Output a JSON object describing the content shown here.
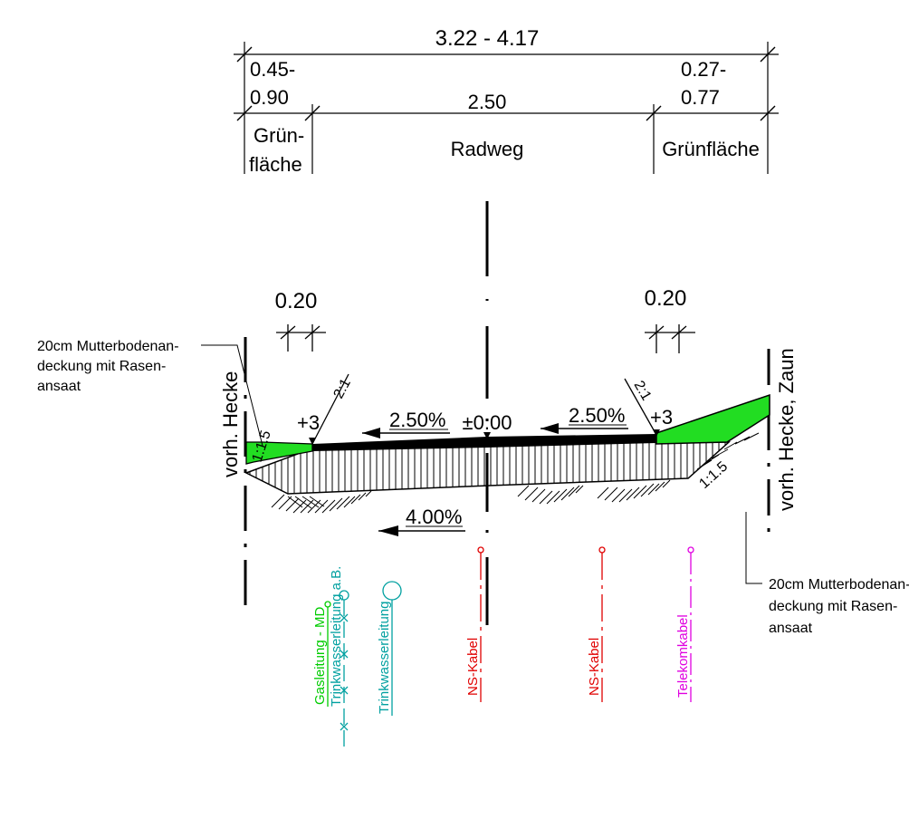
{
  "dimensions": {
    "total_width": "3.22 - 4.17",
    "left_green_width_top": "0.45-",
    "left_green_width_bottom": "0.90",
    "bikepath_width": "2.50",
    "right_green_width_top": "0.27-",
    "right_green_width_bottom": "0.77",
    "left_offset": "0.20",
    "right_offset": "0.20"
  },
  "zones": {
    "left_label_line1": "Grün-",
    "left_label_line2": "fläche",
    "center_label": "Radweg",
    "right_label": "Grünfläche"
  },
  "profile": {
    "left_height": "+3",
    "right_height": "+3",
    "center_height": "±0.00",
    "left_slope": "2.50%",
    "right_slope": "2.50%",
    "base_slope": "4.00%",
    "left_embankment_ratio": "1:1.5",
    "right_embankment_ratio": "1:1.5",
    "left_cut_ratio": "2:1",
    "right_cut_ratio": "2:1"
  },
  "edges": {
    "left": "vorh. Hecke",
    "right": "vorh. Hecke, Zaun"
  },
  "annotations": {
    "left_note": [
      "20cm Mutterbodenan-",
      "deckung mit Rasen-",
      "ansaat"
    ],
    "right_note": [
      "20cm Mutterbodenan-",
      "deckung mit Rasen-",
      "ansaat"
    ]
  },
  "utilities": [
    {
      "label": "Gasleitung - MD",
      "color": "#00cc00"
    },
    {
      "label": "Trinkwasserleitung a.B.",
      "color": "#00a0a0"
    },
    {
      "label": "Trinkwasserleitung",
      "color": "#00a0a0"
    },
    {
      "label": "NS-Kabel",
      "color": "#e00000"
    },
    {
      "label": "NS-Kabel",
      "color": "#e00000"
    },
    {
      "label": "Telekomkabel",
      "color": "#e000e0"
    }
  ],
  "colors": {
    "green_area": "#22dd22",
    "asphalt": "#000000",
    "lines": "#000000"
  }
}
